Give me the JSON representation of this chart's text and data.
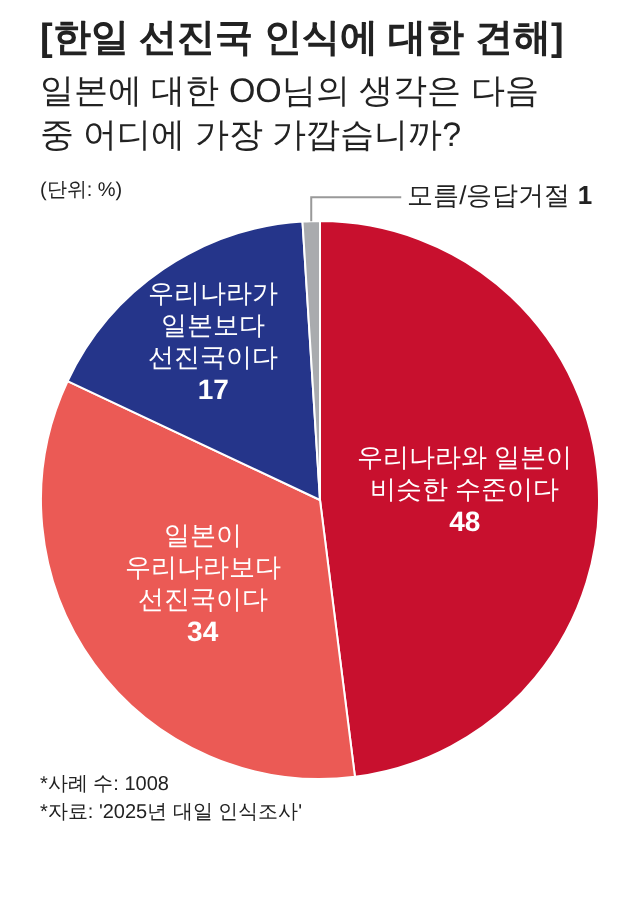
{
  "chart_data": {
    "type": "pie",
    "title": "[한일 선진국 인식에 대한 견해]",
    "subtitle": "일본에 대한 OO님의 생각은 다음 중 어디에 가장 가깝습니까?",
    "annotations": [
      "(단위: %)",
      "*사례 수: 1008",
      "*자료: '2025년 대일 인식조사'"
    ],
    "categories": [
      "우리나라와 일본이 비슷한 수준이다",
      "일본이 우리나라보다 선진국이다",
      "우리나라가 일본보다 선진국이다",
      "모름/응답거절"
    ],
    "values": [
      48,
      34,
      17,
      1
    ],
    "colors": [
      "#c8102e",
      "#eb5a55",
      "#25358a",
      "#a9abae"
    ],
    "data_labels": true,
    "legend": false
  }
}
